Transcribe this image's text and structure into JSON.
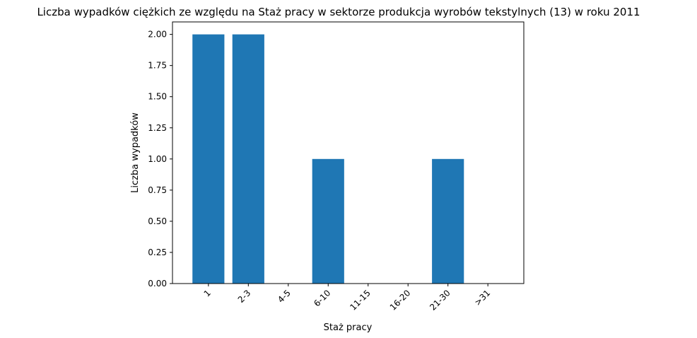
{
  "chart_data": {
    "type": "bar",
    "title": "Liczba wypadków ciężkich ze względu na Staż pracy w sektorze produkcja wyrobów tekstylnych  (13)   w roku 2011",
    "xlabel": "Staż pracy",
    "ylabel": "Liczba wypadków",
    "categories": [
      "1",
      "2-3",
      "4-5",
      "6-10",
      "11-15",
      "16-20",
      "21-30",
      ">31"
    ],
    "values": [
      2,
      2,
      0,
      1,
      0,
      0,
      1,
      0
    ],
    "ylim": [
      0,
      2.1
    ],
    "yticks": [
      "0.00",
      "0.25",
      "0.50",
      "0.75",
      "1.00",
      "1.25",
      "1.50",
      "1.75",
      "2.00"
    ],
    "bar_color": "#1f77b4",
    "grid": false
  }
}
